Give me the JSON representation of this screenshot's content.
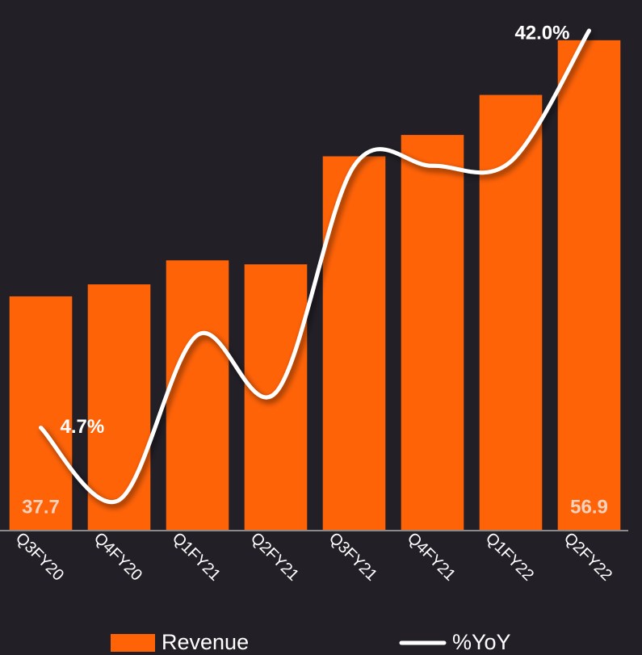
{
  "chart_data": {
    "type": "bar_line",
    "categories": [
      "Q3FY20",
      "Q4FY20",
      "Q1FY21",
      "Q2FY21",
      "Q3FY21",
      "Q4FY21",
      "Q1FY22",
      "Q2FY22"
    ],
    "series": [
      {
        "name": "Revenue",
        "type": "bar",
        "color": "#ff6308",
        "values": [
          37.7,
          38.6,
          40.4,
          40.1,
          48.2,
          49.8,
          52.8,
          56.9
        ],
        "value_labels": [
          "37.7",
          null,
          null,
          null,
          null,
          null,
          null,
          "56.9"
        ]
      },
      {
        "name": "%YoY",
        "type": "line",
        "axis": "y2",
        "color": "#ffffff",
        "values": [
          4.7,
          -2.1,
          13.4,
          8.0,
          29.3,
          29.3,
          29.7,
          42.0
        ],
        "value_labels": [
          "4.7%",
          null,
          null,
          null,
          null,
          null,
          null,
          "42.0%"
        ]
      }
    ],
    "ylim": [
      20.2,
      58.1
    ],
    "y2lim": [
      -4.9,
      42.6
    ],
    "legend": "bottom"
  }
}
